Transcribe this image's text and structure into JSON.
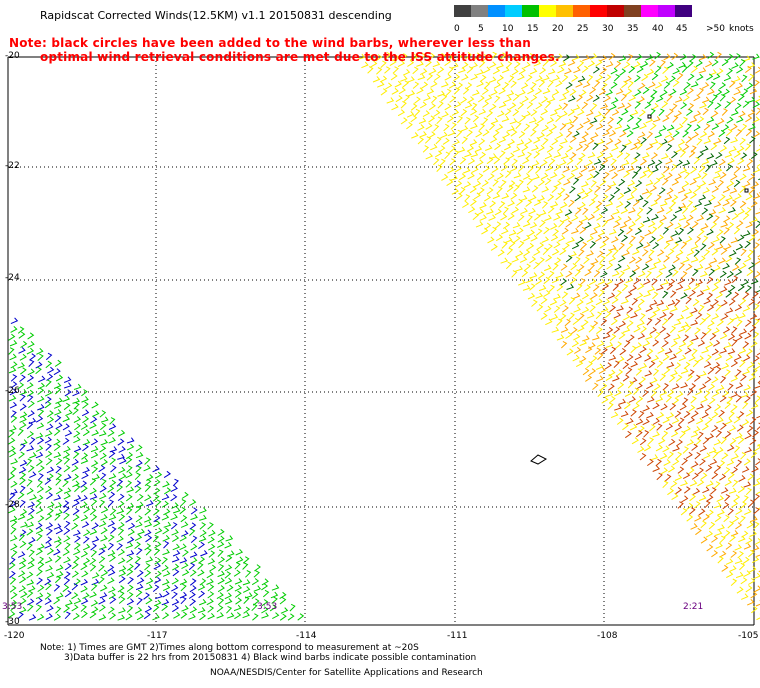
{
  "title": "Rapidscat Corrected Winds(12.5KM) v1.1 20150831 descending",
  "notes": [
    "Note: black circles have been added to the wind barbs, wherever less than",
    "optimal wind retrieval conditions are met due to the ISS attitude changes."
  ],
  "legend": {
    "unit": "knots",
    "colors": [
      "#404040",
      "#808080",
      "#0090ff",
      "#00ccff",
      "#00c000",
      "#ffff00",
      "#ffc000",
      "#ff6000",
      "#ff0000",
      "#c00000",
      "#804020",
      "#ff00ff",
      "#c000ff",
      "#400080"
    ],
    "labels": [
      "0",
      "5",
      "10",
      "15",
      "20",
      "25",
      "30",
      "35",
      "40",
      "45",
      ">50"
    ]
  },
  "axes": {
    "lat_ticks": [
      "-20",
      "-22",
      "-24",
      "-26",
      "-28",
      "-30"
    ],
    "lon_ticks": [
      "-120",
      "-117",
      "-114",
      "-111",
      "-108",
      "-105"
    ]
  },
  "pass_times": [
    "3:53",
    "3:53",
    "2:21"
  ],
  "footer": [
    "Note: 1) Times are GMT 2)Times along bottom correspond to measurement at ~20S",
    "3)Data buffer is 22 hrs from 20150831 4) Black wind barbs indicate possible contamination",
    "NOAA/NESDIS/Center for Satellite Applications and Research"
  ],
  "speed_colors": {
    "blue": "#0000cc",
    "green": "#00cc00",
    "dark_green": "#006400",
    "yellow": "#ffee00",
    "orange": "#ffaa00",
    "red_brown": "#cc4400"
  }
}
